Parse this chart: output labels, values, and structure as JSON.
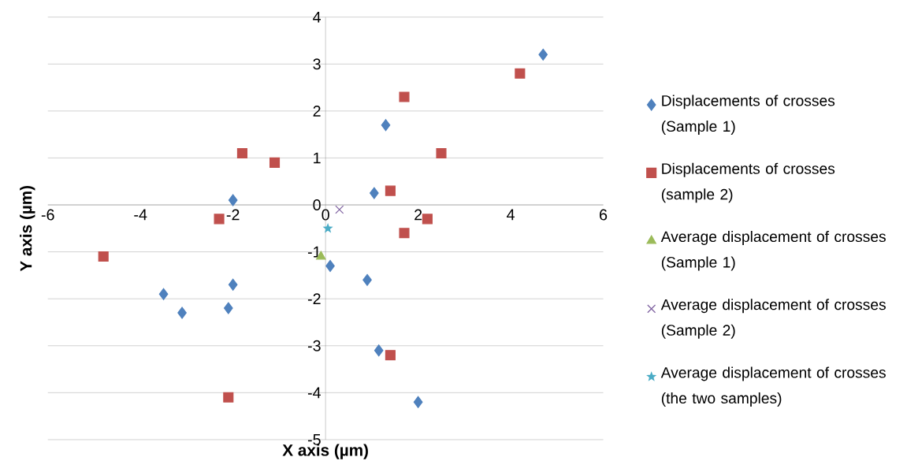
{
  "chart_data": {
    "type": "scatter",
    "xlabel": "X axis (µm)",
    "ylabel": "Y axis (µm)",
    "xlim": [
      -6,
      6
    ],
    "ylim": [
      -5,
      4
    ],
    "xticks": [
      -6,
      -4,
      -2,
      0,
      2,
      4,
      6
    ],
    "yticks": [
      -5,
      -4,
      -3,
      -2,
      -1,
      0,
      1,
      2,
      3,
      4
    ],
    "grid": "y",
    "legend": "right",
    "series": [
      {
        "name": "Displacements of crosses (Sample 1)",
        "color": "#4f81bd",
        "marker": "diamond",
        "x": [
          4.7,
          1.3,
          1.05,
          -2.0,
          0.1,
          0.9,
          -2.0,
          -3.5,
          -3.1,
          -2.1,
          1.15,
          2.0
        ],
        "values": [
          3.2,
          1.7,
          0.25,
          0.1,
          -1.3,
          -1.6,
          -1.7,
          -1.9,
          -2.3,
          -2.2,
          -3.1,
          -4.2
        ]
      },
      {
        "name": "Displacements of crosses (sample 2)",
        "color": "#c0504d",
        "marker": "square",
        "x": [
          4.2,
          1.7,
          -1.8,
          2.5,
          -1.1,
          1.4,
          -2.3,
          2.2,
          1.7,
          -4.8,
          1.4,
          -2.1
        ],
        "values": [
          2.8,
          2.3,
          1.1,
          1.1,
          0.9,
          0.3,
          -0.3,
          -0.3,
          -0.6,
          -1.1,
          -3.2,
          -4.1
        ]
      },
      {
        "name": "Average displacement of crosses (Sample 1)",
        "color": "#9bbb59",
        "marker": "triangle",
        "x": [
          -0.1
        ],
        "values": [
          -1.1
        ]
      },
      {
        "name": "Average displacement of crosses (Sample 2)",
        "color": "#8064a2",
        "marker": "cross",
        "x": [
          0.3
        ],
        "values": [
          -0.1
        ]
      },
      {
        "name": "Average displacement of crosses (the two samples)",
        "color": "#4bacc6",
        "marker": "star",
        "x": [
          0.05
        ],
        "values": [
          -0.5
        ]
      }
    ]
  }
}
